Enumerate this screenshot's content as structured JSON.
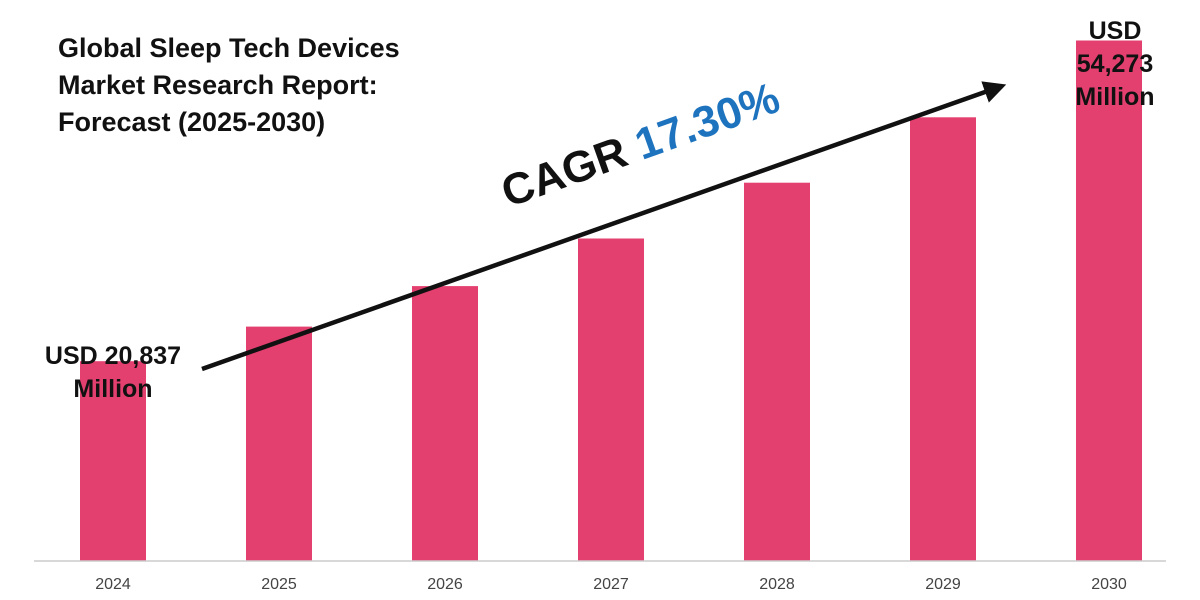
{
  "chart_data": {
    "type": "bar",
    "title_lines": [
      "Global Sleep Tech Devices",
      "Market Research Report:",
      "Forecast (2025-2030)"
    ],
    "categories": [
      "2024",
      "2025",
      "2026",
      "2027",
      "2028",
      "2029",
      "2030"
    ],
    "values": [
      20837,
      24442,
      28670,
      33630,
      39448,
      46272,
      54273
    ],
    "unit": "USD Million",
    "ylim": [
      0,
      58500
    ],
    "grid": false,
    "bar_color": "#e33f6f",
    "annotations": {
      "start_value_lines": [
        "USD 20,837",
        "Million"
      ],
      "end_value_lines": [
        "USD",
        "54,273",
        "Million"
      ],
      "cagr_word": "CAGR",
      "cagr_value": "17.30%",
      "cagr_color": "#1e73be"
    }
  }
}
